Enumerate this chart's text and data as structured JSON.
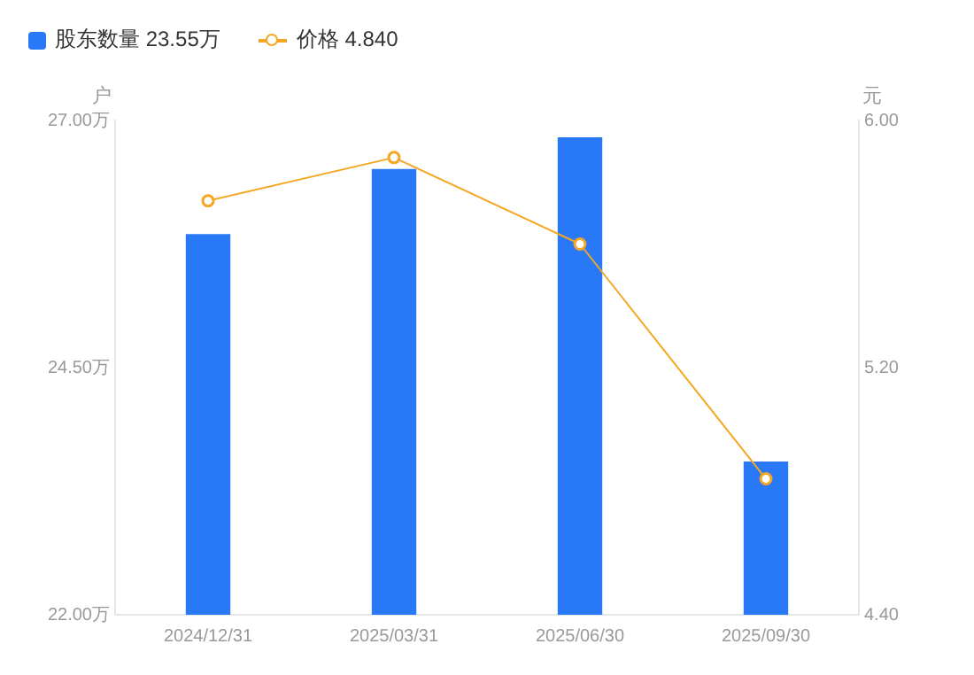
{
  "chart_data": {
    "type": "bar",
    "categories": [
      "2024/12/31",
      "2025/03/31",
      "2025/06/30",
      "2025/09/30"
    ],
    "series": [
      {
        "name": "股东数量 23.55万",
        "color": "#2979f6",
        "values": [
          25.85,
          26.51,
          26.83,
          23.55
        ]
      },
      {
        "name": "价格 4.840",
        "type": "line",
        "axis": "y2",
        "color": "#f5a623",
        "marker": "circle",
        "values": [
          5.74,
          5.88,
          5.6,
          4.84
        ]
      }
    ],
    "ylabel": "户",
    "y2label": "元",
    "ylim": [
      22,
      27
    ],
    "yticks": [
      {
        "value": 22,
        "label": "22.00万"
      },
      {
        "value": 24.5,
        "label": "24.50万"
      },
      {
        "value": 27,
        "label": "27.00万"
      }
    ],
    "y2lim": [
      4.4,
      6
    ],
    "y2ticks": [
      {
        "value": 4.4,
        "label": "4.40"
      },
      {
        "value": 5.2,
        "label": "5.20"
      },
      {
        "value": 6,
        "label": "6.00"
      }
    ],
    "legend": "top left",
    "grid": false
  }
}
